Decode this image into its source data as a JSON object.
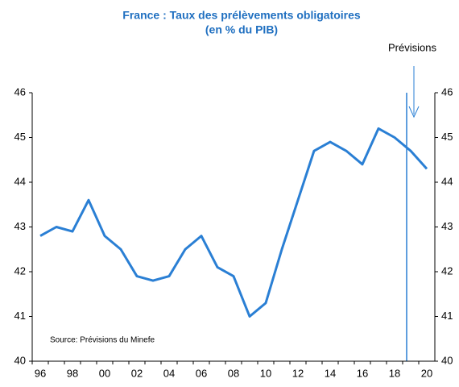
{
  "chart_data": {
    "type": "line",
    "title": "France : Taux des prélèvements obligatoires",
    "subtitle": "(en % du PIB)",
    "annotation": "Prévisions",
    "source": "Source: Prévisions du Minefe",
    "categories": [
      "96",
      null,
      "98",
      null,
      "00",
      null,
      "02",
      null,
      "04",
      null,
      "06",
      null,
      "08",
      null,
      "10",
      null,
      "12",
      null,
      "14",
      null,
      "16",
      null,
      "18",
      null,
      "20"
    ],
    "series": [
      {
        "name": "Taux des prélèvements obligatoires",
        "color": "#2a7fd4",
        "values": [
          42.8,
          43.0,
          42.9,
          43.6,
          42.8,
          42.5,
          41.9,
          41.8,
          41.9,
          42.5,
          42.8,
          42.1,
          41.9,
          41.0,
          41.3,
          42.5,
          43.6,
          44.7,
          44.9,
          44.7,
          44.4,
          45.2,
          45.0,
          44.7,
          44.3
        ]
      }
    ],
    "ylim": [
      40,
      46
    ],
    "yticks": [
      40,
      41,
      42,
      43,
      44,
      45,
      46
    ],
    "y2lim": [
      40,
      46
    ],
    "y2ticks": [
      40,
      41,
      42,
      43,
      44,
      45,
      46
    ],
    "grid": false
  }
}
